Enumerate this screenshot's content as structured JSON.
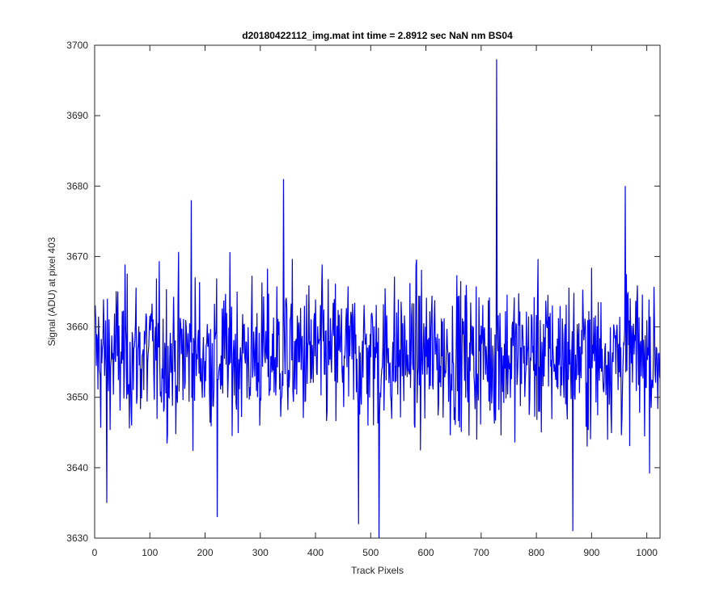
{
  "chart_data": {
    "type": "line",
    "title": "d20180422112_img.mat int time = 2.8912 sec  NaN nm BS04",
    "xlabel": "Track Pixels",
    "ylabel": "Signal (ADU) at pixel 403",
    "xlim": [
      0,
      1024
    ],
    "ylim": [
      3630,
      3700
    ],
    "xticks": [
      0,
      100,
      200,
      300,
      400,
      500,
      600,
      700,
      800,
      900,
      1000
    ],
    "yticks": [
      3630,
      3640,
      3650,
      3660,
      3670,
      3680,
      3690,
      3700
    ],
    "grid": false,
    "legend": "none",
    "series": [
      {
        "color": "#0000ff",
        "x_range": [
          1,
          1024
        ],
        "baseline_mean": 3656,
        "noise_amplitude": 6,
        "notable_points": [
          {
            "x": 22,
            "y": 3635
          },
          {
            "x": 175,
            "y": 3678
          },
          {
            "x": 222,
            "y": 3633
          },
          {
            "x": 342,
            "y": 3681
          },
          {
            "x": 478,
            "y": 3632
          },
          {
            "x": 515,
            "y": 3630
          },
          {
            "x": 728,
            "y": 3698
          },
          {
            "x": 866,
            "y": 3631
          },
          {
            "x": 961,
            "y": 3680
          }
        ]
      }
    ]
  }
}
